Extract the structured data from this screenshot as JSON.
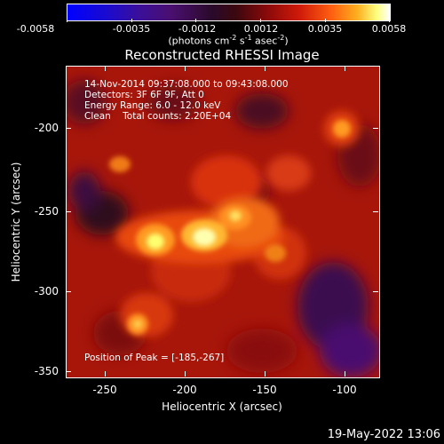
{
  "colorbar": {
    "ticks": [
      "-0.0058",
      "-0.0035",
      "-0.0012",
      "0.0012",
      "0.0035",
      "0.0058"
    ],
    "units_prefix": "(photons cm",
    "units_exp1": "-2",
    "units_mid1": " s",
    "units_exp2": "-1",
    "units_mid2": " asec",
    "units_exp3": "-2",
    "units_suffix": ")"
  },
  "title": "Reconstructed RHESSI Image",
  "info": {
    "time_range": "14-Nov-2014 09:37:08.000 to 09:43:08.000",
    "detectors": "Detectors: 3F 6F 9F, Att 0",
    "energy": "Energy Range: 6.0 - 12.0 keV",
    "clean": "Clean    Total counts: 2.20E+04"
  },
  "peak": "Position of Peak = [-185,-267]",
  "axes": {
    "xlabel": "Heliocentric X (arcsec)",
    "ylabel": "Heliocentric Y (arcsec)",
    "xticks": [
      "-250",
      "-200",
      "-150",
      "-100"
    ],
    "yticks": [
      "-200",
      "-250",
      "-300",
      "-350"
    ]
  },
  "colors": {
    "frame": "#ffffff",
    "background": "#000000"
  },
  "datestamp": "19-May-2022 13:06"
}
